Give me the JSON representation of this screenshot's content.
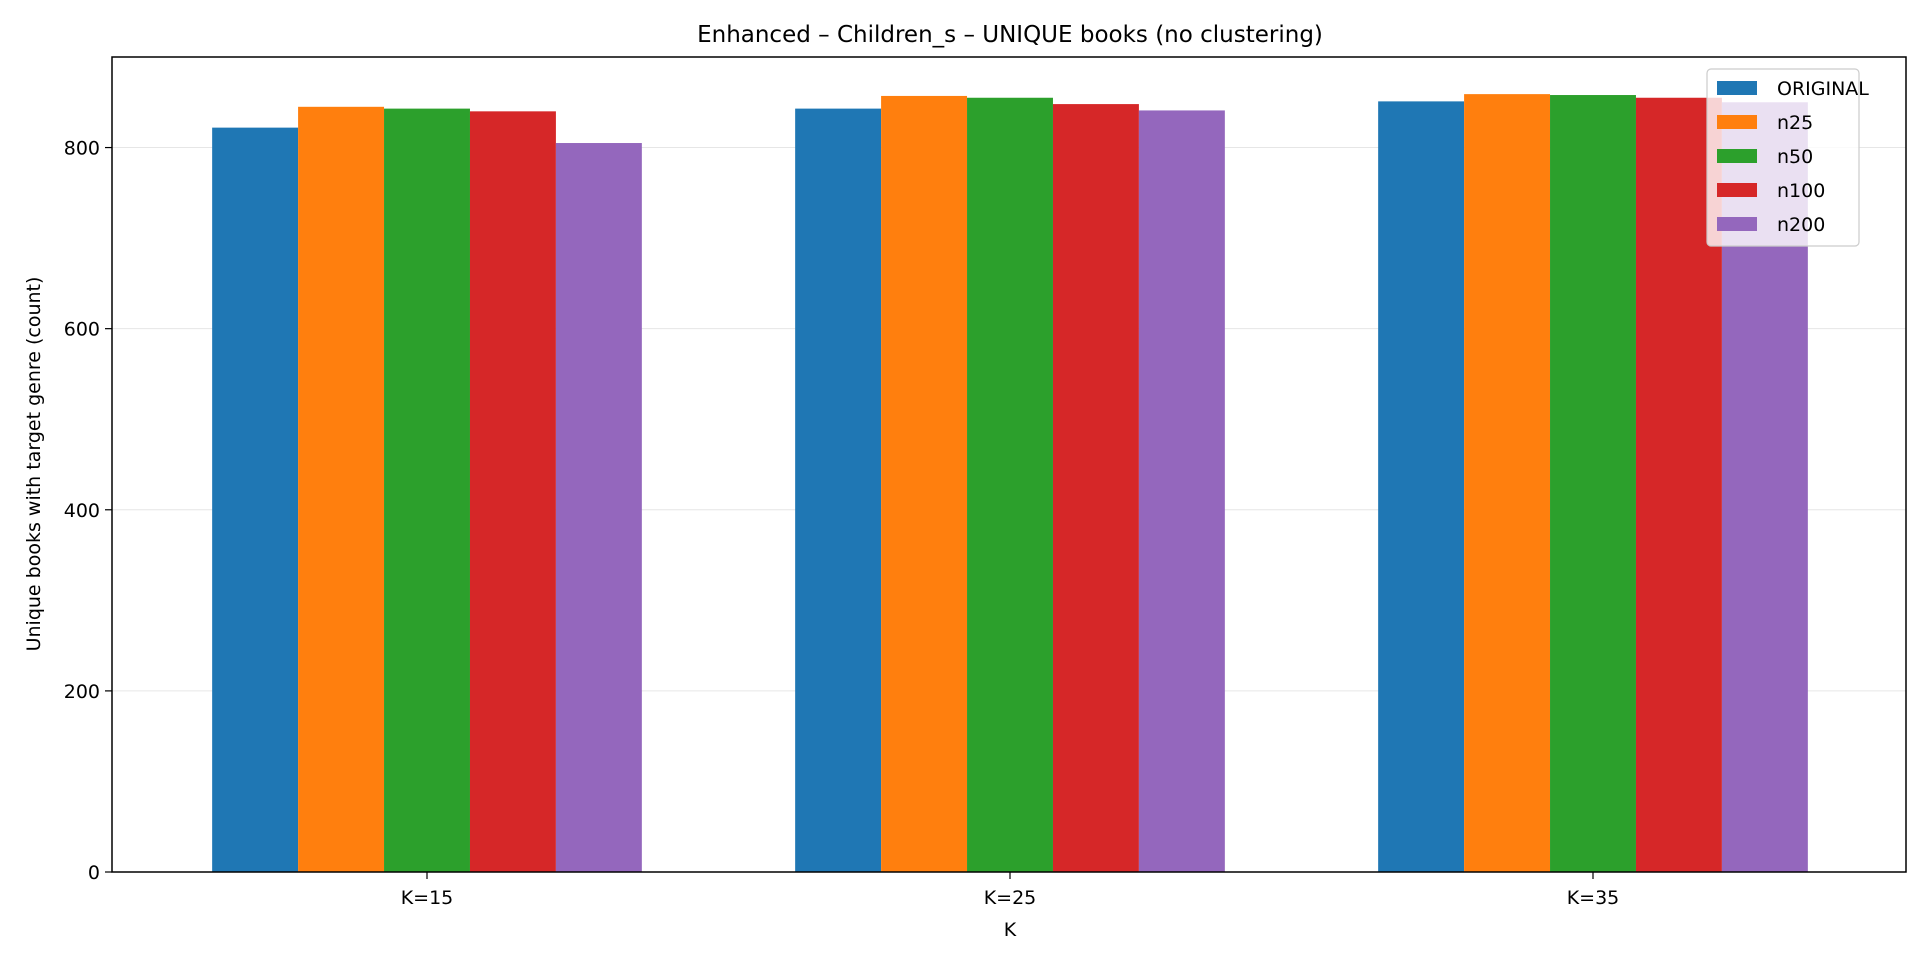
{
  "chart_data": {
    "type": "bar",
    "title": "Enhanced – Children_s – UNIQUE books (no clustering)",
    "xlabel": "K",
    "ylabel": "Unique books with target genre (count)",
    "categories": [
      "K=15",
      "K=25",
      "K=35"
    ],
    "ylim": [
      0,
      900
    ],
    "yticks": [
      0,
      200,
      400,
      600,
      800
    ],
    "grid": "horizontal",
    "legend_position": "top-right",
    "series": [
      {
        "name": "ORIGINAL",
        "color": "#1f77b4",
        "values": [
          822,
          843,
          851
        ]
      },
      {
        "name": "n25",
        "color": "#ff7f0e",
        "values": [
          845,
          857,
          859
        ]
      },
      {
        "name": "n50",
        "color": "#2ca02c",
        "values": [
          843,
          855,
          858
        ]
      },
      {
        "name": "n100",
        "color": "#d62728",
        "values": [
          840,
          848,
          855
        ]
      },
      {
        "name": "n200",
        "color": "#9467bd",
        "values": [
          805,
          841,
          850
        ]
      }
    ]
  }
}
